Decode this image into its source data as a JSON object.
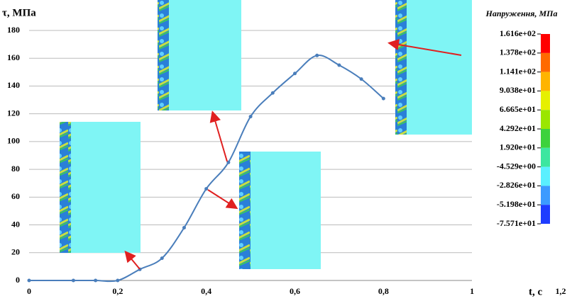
{
  "chart_data": {
    "type": "line",
    "y_label": "τ, МПа",
    "x_label": "t, с",
    "x": [
      0,
      0.1,
      0.15,
      0.2,
      0.25,
      0.3,
      0.35,
      0.4,
      0.45,
      0.5,
      0.55,
      0.6,
      0.65,
      0.7,
      0.75,
      0.8
    ],
    "values": [
      0,
      0,
      0,
      0,
      8,
      16,
      38,
      66,
      85,
      118,
      135,
      149,
      162,
      155,
      145,
      131
    ],
    "color": "#4a7ebb",
    "xlim": [
      0,
      1.2
    ],
    "xticks": [
      0,
      {
        "value": 0.2,
        "label": "0,2"
      },
      {
        "value": 0.4,
        "label": "0,4"
      },
      {
        "value": 0.6,
        "label": "0,6"
      },
      {
        "value": 0.8,
        "label": "0,8"
      },
      1,
      {
        "value": 1.2,
        "label": "1,2"
      }
    ],
    "ylim": [
      0,
      180
    ],
    "yticks": [
      0,
      20,
      40,
      60,
      80,
      100,
      120,
      140,
      160,
      180
    ],
    "grid": true,
    "colorbar": {
      "title": "Напруження, МПа",
      "ticks": [
        {
          "value": 161.6,
          "label": "1.616e+02"
        },
        {
          "value": 137.8,
          "label": "1.378e+02"
        },
        {
          "value": 114.1,
          "label": "1.141e+02"
        },
        {
          "value": 90.38,
          "label": "9.038e+01"
        },
        {
          "value": 66.65,
          "label": "6.665e+01"
        },
        {
          "value": 42.92,
          "label": "4.292e+01"
        },
        {
          "value": 19.2,
          "label": "1.920e+01"
        },
        {
          "value": -4.529,
          "label": "-4.529e+00"
        },
        {
          "value": -28.26,
          "label": "-2.826e+01"
        },
        {
          "value": -51.98,
          "label": "-5.198e+01"
        },
        {
          "value": -75.71,
          "label": "-7.571e+01"
        }
      ],
      "colors": [
        "#ff0000",
        "#ff6a00",
        "#ffb400",
        "#e6f000",
        "#9be600",
        "#3cd23c",
        "#3ce6a0",
        "#5af0ff",
        "#3c9bff",
        "#1e3cff"
      ]
    }
  }
}
